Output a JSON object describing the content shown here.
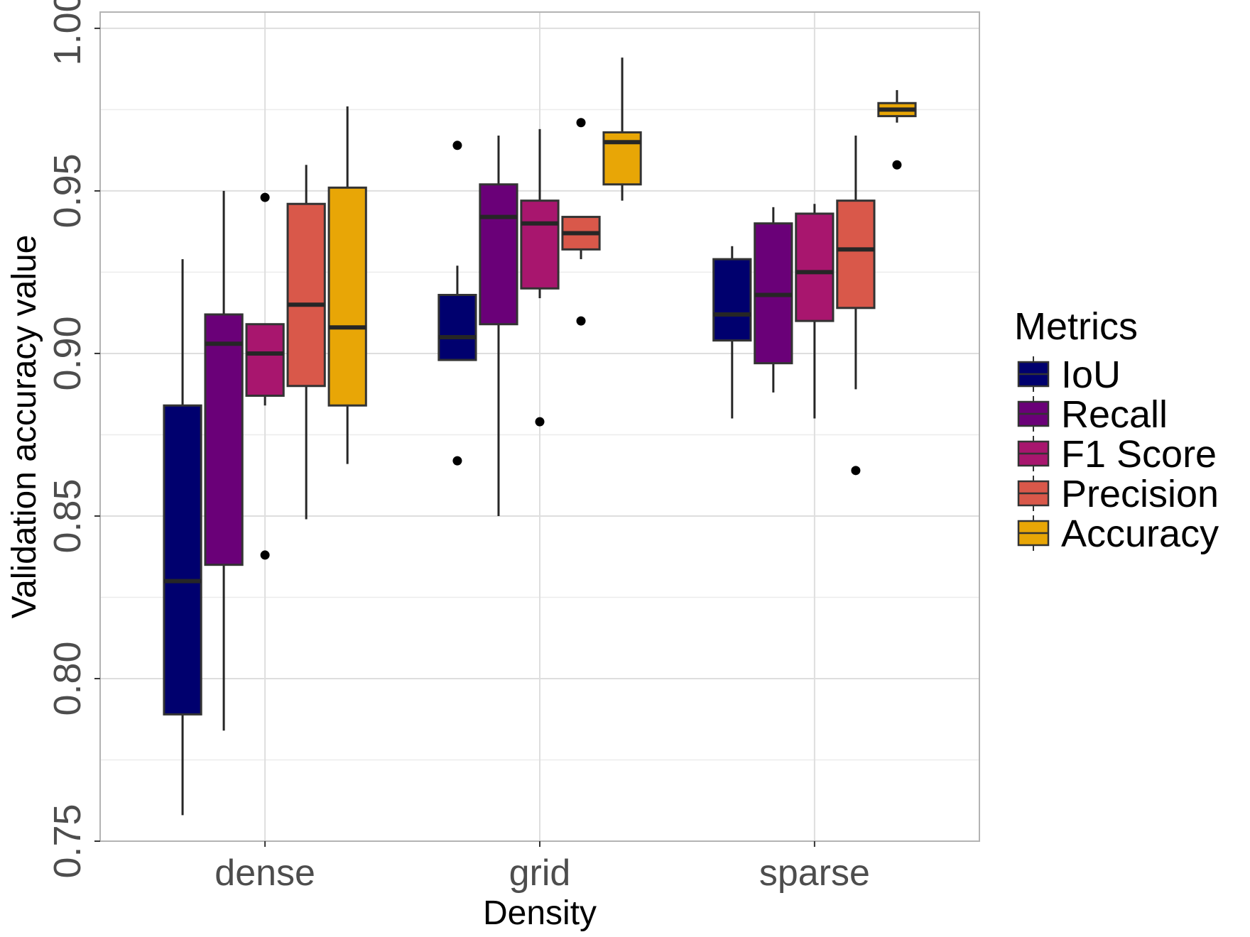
{
  "chart_data": {
    "type": "boxplot",
    "xlabel": "Density",
    "ylabel": "Validation accuracy value",
    "ylim": [
      0.75,
      1.005
    ],
    "yticks": [
      "0.75",
      "0.80",
      "0.85",
      "0.90",
      "0.95",
      "1.00"
    ],
    "ytick_values": [
      0.75,
      0.8,
      0.85,
      0.9,
      0.95,
      1.0
    ],
    "categories": [
      "dense",
      "grid",
      "sparse"
    ],
    "grid": true,
    "legend": {
      "title": "Metrics",
      "placement": "right"
    },
    "series": [
      {
        "name": "IoU",
        "color": "#00006e",
        "boxes": [
          {
            "category": "dense",
            "lower_whisker": 0.758,
            "q1": 0.789,
            "median": 0.83,
            "q3": 0.884,
            "upper_whisker": 0.929,
            "outliers": []
          },
          {
            "category": "grid",
            "lower_whisker": 0.898,
            "q1": 0.898,
            "median": 0.905,
            "q3": 0.918,
            "upper_whisker": 0.927,
            "outliers": [
              0.964,
              0.867
            ]
          },
          {
            "category": "sparse",
            "lower_whisker": 0.88,
            "q1": 0.904,
            "median": 0.912,
            "q3": 0.929,
            "upper_whisker": 0.933,
            "outliers": []
          }
        ]
      },
      {
        "name": "Recall",
        "color": "#6a0078",
        "boxes": [
          {
            "category": "dense",
            "lower_whisker": 0.784,
            "q1": 0.835,
            "median": 0.903,
            "q3": 0.912,
            "upper_whisker": 0.95,
            "outliers": []
          },
          {
            "category": "grid",
            "lower_whisker": 0.85,
            "q1": 0.909,
            "median": 0.942,
            "q3": 0.952,
            "upper_whisker": 0.967,
            "outliers": []
          },
          {
            "category": "sparse",
            "lower_whisker": 0.888,
            "q1": 0.897,
            "median": 0.918,
            "q3": 0.94,
            "upper_whisker": 0.945,
            "outliers": []
          }
        ]
      },
      {
        "name": "F1 Score",
        "color": "#a8166e",
        "boxes": [
          {
            "category": "dense",
            "lower_whisker": 0.884,
            "q1": 0.887,
            "median": 0.9,
            "q3": 0.909,
            "upper_whisker": 0.909,
            "outliers": [
              0.948,
              0.838
            ]
          },
          {
            "category": "grid",
            "lower_whisker": 0.917,
            "q1": 0.92,
            "median": 0.94,
            "q3": 0.947,
            "upper_whisker": 0.969,
            "outliers": [
              0.879
            ]
          },
          {
            "category": "sparse",
            "lower_whisker": 0.88,
            "q1": 0.91,
            "median": 0.925,
            "q3": 0.943,
            "upper_whisker": 0.946,
            "outliers": []
          }
        ]
      },
      {
        "name": "Precision",
        "color": "#d9584a",
        "boxes": [
          {
            "category": "dense",
            "lower_whisker": 0.849,
            "q1": 0.89,
            "median": 0.915,
            "q3": 0.946,
            "upper_whisker": 0.958,
            "outliers": []
          },
          {
            "category": "grid",
            "lower_whisker": 0.929,
            "q1": 0.932,
            "median": 0.937,
            "q3": 0.942,
            "upper_whisker": 0.942,
            "outliers": [
              0.971,
              0.91
            ]
          },
          {
            "category": "sparse",
            "lower_whisker": 0.889,
            "q1": 0.914,
            "median": 0.932,
            "q3": 0.947,
            "upper_whisker": 0.967,
            "outliers": [
              0.864
            ]
          }
        ]
      },
      {
        "name": "Accuracy",
        "color": "#e8a606",
        "boxes": [
          {
            "category": "dense",
            "lower_whisker": 0.866,
            "q1": 0.884,
            "median": 0.908,
            "q3": 0.951,
            "upper_whisker": 0.976,
            "outliers": []
          },
          {
            "category": "grid",
            "lower_whisker": 0.947,
            "q1": 0.952,
            "median": 0.965,
            "q3": 0.968,
            "upper_whisker": 0.991,
            "outliers": []
          },
          {
            "category": "sparse",
            "lower_whisker": 0.971,
            "q1": 0.973,
            "median": 0.975,
            "q3": 0.977,
            "upper_whisker": 0.981,
            "outliers": [
              0.958
            ]
          }
        ]
      }
    ]
  }
}
